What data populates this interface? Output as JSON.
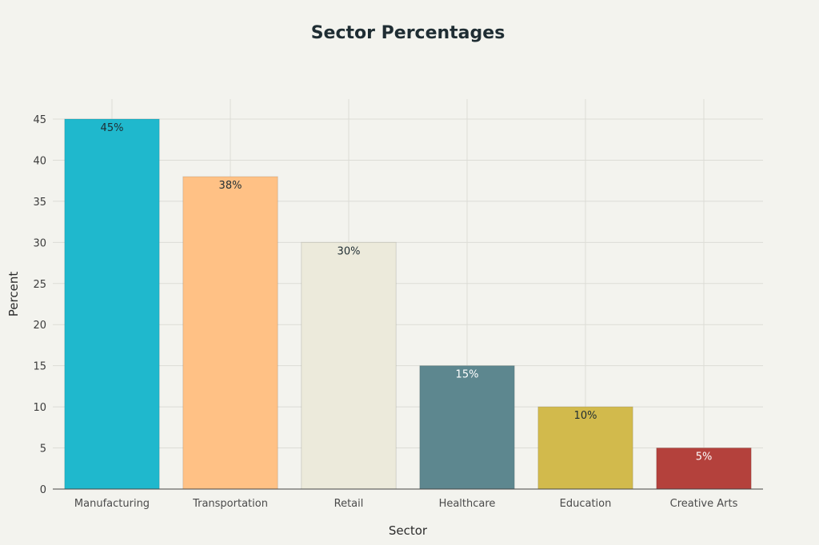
{
  "chart_data": {
    "type": "bar",
    "title": "Sector Percentages",
    "xlabel": "Sector",
    "ylabel": "Percent",
    "categories": [
      "Manufacturing",
      "Transportation",
      "Retail",
      "Healthcare",
      "Education",
      "Creative Arts"
    ],
    "values": [
      45,
      38,
      30,
      15,
      10,
      5
    ],
    "data_labels": [
      "45%",
      "38%",
      "30%",
      "15%",
      "10%",
      "5%"
    ],
    "colors": [
      "#1fb8cd",
      "#ffc185",
      "#eceadb",
      "#5d878f",
      "#d2ba4c",
      "#b4413c"
    ],
    "label_colors": [
      "#1f2d33",
      "#1f2d33",
      "#1f2d33",
      "#ffffff",
      "#1f2d33",
      "#ffffff"
    ],
    "ylim": [
      0,
      45
    ],
    "yticks": [
      0,
      5,
      10,
      15,
      20,
      25,
      30,
      35,
      40,
      45
    ],
    "grid": true,
    "legend": "none"
  }
}
